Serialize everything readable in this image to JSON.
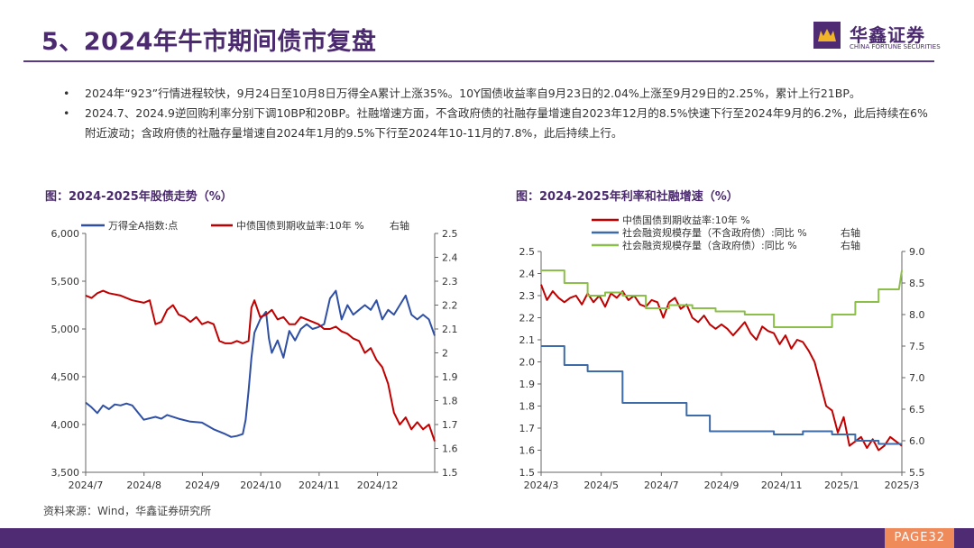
{
  "page": {
    "title": "5、2024年牛市期间债市复盘",
    "logo_cn": "华鑫证券",
    "logo_en": "CHINA FORTUNE SECURITIES",
    "bullets": [
      "2024年“923”行情进程较快，9月24日至10月8日万得全A累计上涨35%。10Y国债收益率自9月23日的2.04%上涨至9月29日的2.25%，累计上行21BP。",
      "2024.7、2024.9逆回购利率分别下调10BP和20BP。社融增速方面，不含政府债的社融存量增速自2023年12月的8.5%快速下行至2024年9月的6.2%，此后持续在6%附近波动；含政府债的社融存量增速自2024年1月的9.5%下行至2024年10-11月的7.8%，此后持续上行。"
    ],
    "chart1_title": "图：2024-2025年股债走势（%）",
    "chart2_title": "图：2024-2025年利率和社融增速（%）",
    "source": "资料来源：Wind，华鑫证券研究所",
    "page_label": "PAGE32"
  },
  "colors": {
    "brand": "#4f2b73",
    "series_blue": "#2e4fa3",
    "series_red": "#c00000",
    "series_green": "#8cbf4a",
    "series_steel": "#3d6aa8",
    "page_tag": "#ef8a5b"
  },
  "chart_data": [
    {
      "type": "line",
      "x_tick_labels": [
        "2024/7",
        "2024/8",
        "2024/9",
        "2024/10",
        "2024/11",
        "2024/12"
      ],
      "right_axis_note": "右轴",
      "y_left": {
        "lim": [
          3500,
          6000
        ],
        "ticks": [
          3500,
          4000,
          4500,
          5000,
          5500,
          6000
        ],
        "tick_labels": [
          "3,500",
          "4,000",
          "4,500",
          "5,000",
          "5,500",
          "6,000"
        ]
      },
      "y_right": {
        "lim": [
          1.5,
          2.5
        ],
        "ticks": [
          1.5,
          1.6,
          1.7,
          1.8,
          1.9,
          2.0,
          2.1,
          2.2,
          2.3,
          2.4,
          2.5
        ],
        "tick_labels": [
          "1.5",
          "1.6",
          "1.7",
          "1.8",
          "1.9",
          "2",
          "2.1",
          "2.2",
          "2.3",
          "2.4",
          "2.5"
        ]
      },
      "x_range": [
        0,
        6
      ],
      "series": [
        {
          "name": "万得全A指数:点",
          "axis": "left",
          "x": [
            0,
            0.1,
            0.2,
            0.3,
            0.4,
            0.5,
            0.6,
            0.7,
            0.8,
            1.0,
            1.2,
            1.3,
            1.4,
            1.6,
            1.8,
            2.0,
            2.2,
            2.4,
            2.5,
            2.6,
            2.7,
            2.75,
            2.8,
            2.85,
            2.9,
            3.0,
            3.1,
            3.15,
            3.2,
            3.3,
            3.4,
            3.5,
            3.6,
            3.7,
            3.8,
            3.9,
            4.0,
            4.1,
            4.2,
            4.3,
            4.4,
            4.5,
            4.6,
            4.7,
            4.8,
            4.9,
            5.0,
            5.1,
            5.2,
            5.3,
            5.4,
            5.5,
            5.6,
            5.7,
            5.8,
            5.9,
            6.0
          ],
          "y": [
            4230,
            4180,
            4120,
            4200,
            4160,
            4210,
            4200,
            4220,
            4200,
            4050,
            4080,
            4060,
            4100,
            4060,
            4030,
            4020,
            3950,
            3900,
            3870,
            3880,
            3900,
            4050,
            4350,
            4700,
            4960,
            5100,
            5180,
            4900,
            4750,
            4880,
            4700,
            4980,
            4880,
            5000,
            5050,
            5000,
            5020,
            5050,
            5320,
            5400,
            5100,
            5250,
            5150,
            5200,
            5250,
            5200,
            5300,
            5100,
            5200,
            5150,
            5250,
            5350,
            5150,
            5100,
            5150,
            5100,
            4930
          ]
        },
        {
          "name": "中债国债到期收益率:10年 %",
          "axis": "right",
          "x": [
            0,
            0.1,
            0.2,
            0.3,
            0.4,
            0.6,
            0.8,
            1.0,
            1.1,
            1.2,
            1.3,
            1.4,
            1.5,
            1.6,
            1.7,
            1.8,
            1.9,
            2.0,
            2.1,
            2.2,
            2.3,
            2.4,
            2.5,
            2.6,
            2.7,
            2.8,
            2.85,
            2.9,
            3.0,
            3.1,
            3.2,
            3.3,
            3.4,
            3.5,
            3.6,
            3.7,
            3.8,
            3.9,
            4.0,
            4.1,
            4.2,
            4.3,
            4.4,
            4.5,
            4.6,
            4.7,
            4.8,
            4.9,
            5.0,
            5.1,
            5.2,
            5.3,
            5.4,
            5.5,
            5.6,
            5.7,
            5.8,
            5.9,
            6.0
          ],
          "y": [
            2.24,
            2.23,
            2.25,
            2.26,
            2.25,
            2.24,
            2.22,
            2.21,
            2.22,
            2.12,
            2.13,
            2.18,
            2.2,
            2.16,
            2.15,
            2.13,
            2.15,
            2.12,
            2.13,
            2.12,
            2.05,
            2.04,
            2.04,
            2.05,
            2.04,
            2.05,
            2.19,
            2.22,
            2.15,
            2.16,
            2.18,
            2.14,
            2.15,
            2.12,
            2.12,
            2.15,
            2.14,
            2.13,
            2.12,
            2.1,
            2.1,
            2.11,
            2.09,
            2.08,
            2.06,
            2.05,
            2.0,
            2.02,
            1.97,
            1.94,
            1.87,
            1.75,
            1.7,
            1.73,
            1.68,
            1.71,
            1.68,
            1.7,
            1.63
          ]
        }
      ]
    },
    {
      "type": "line",
      "x_tick_labels": [
        "2024/3",
        "2024/5",
        "2024/7",
        "2024/9",
        "2024/11",
        "2025/1",
        "2025/3"
      ],
      "right_axis_note": "右轴",
      "y_left": {
        "lim": [
          1.5,
          2.5
        ],
        "ticks": [
          1.5,
          1.6,
          1.7,
          1.8,
          1.9,
          2.0,
          2.1,
          2.2,
          2.3,
          2.4,
          2.5
        ],
        "tick_labels": [
          "1.5",
          "1.6",
          "1.7",
          "1.8",
          "1.9",
          "2.0",
          "2.1",
          "2.2",
          "2.3",
          "2.4",
          "2.5"
        ]
      },
      "y_right": {
        "lim": [
          5.5,
          9.0
        ],
        "ticks": [
          5.5,
          6.0,
          6.5,
          7.0,
          7.5,
          8.0,
          8.5,
          9.0
        ],
        "tick_labels": [
          "5.5",
          "6.0",
          "6.5",
          "7.0",
          "7.5",
          "8.0",
          "8.5",
          "9.0"
        ]
      },
      "x_range": [
        0,
        6.2
      ],
      "series": [
        {
          "name": "中债国债到期收益率:10年 %",
          "axis": "left",
          "x": [
            0,
            0.1,
            0.2,
            0.3,
            0.4,
            0.5,
            0.6,
            0.7,
            0.8,
            0.9,
            1.0,
            1.1,
            1.2,
            1.3,
            1.4,
            1.5,
            1.6,
            1.7,
            1.8,
            1.9,
            2.0,
            2.1,
            2.2,
            2.3,
            2.4,
            2.5,
            2.6,
            2.7,
            2.8,
            2.9,
            3.0,
            3.1,
            3.2,
            3.3,
            3.4,
            3.5,
            3.6,
            3.7,
            3.8,
            3.9,
            4.0,
            4.1,
            4.2,
            4.3,
            4.4,
            4.5,
            4.6,
            4.7,
            4.8,
            4.9,
            5.0,
            5.1,
            5.2,
            5.3,
            5.4,
            5.5,
            5.6,
            5.7,
            5.8,
            5.9,
            6.0,
            6.1,
            6.2
          ],
          "y": [
            2.35,
            2.28,
            2.32,
            2.29,
            2.27,
            2.29,
            2.3,
            2.26,
            2.31,
            2.27,
            2.3,
            2.25,
            2.31,
            2.29,
            2.32,
            2.28,
            2.3,
            2.26,
            2.25,
            2.28,
            2.27,
            2.2,
            2.27,
            2.29,
            2.24,
            2.26,
            2.2,
            2.18,
            2.21,
            2.17,
            2.15,
            2.17,
            2.15,
            2.12,
            2.15,
            2.18,
            2.13,
            2.1,
            2.16,
            2.14,
            2.13,
            2.08,
            2.12,
            2.06,
            2.1,
            2.09,
            2.05,
            2.0,
            1.9,
            1.8,
            1.78,
            1.68,
            1.75,
            1.62,
            1.64,
            1.66,
            1.61,
            1.65,
            1.6,
            1.62,
            1.66,
            1.64,
            1.62
          ]
        },
        {
          "name": "社会融资规模存量（不含政府债）:同比 %",
          "axis": "right",
          "x": [
            0,
            0.4,
            0.4,
            0.8,
            0.8,
            1.4,
            1.4,
            2.0,
            2.0,
            2.5,
            2.5,
            2.9,
            2.9,
            3.5,
            3.5,
            4.0,
            4.0,
            4.5,
            4.5,
            5.0,
            5.0,
            5.4,
            5.4,
            5.8,
            5.8,
            6.2
          ],
          "y": [
            7.5,
            7.5,
            7.2,
            7.2,
            7.1,
            7.1,
            6.6,
            6.6,
            6.6,
            6.6,
            6.4,
            6.4,
            6.15,
            6.15,
            6.15,
            6.15,
            6.1,
            6.1,
            6.15,
            6.15,
            6.1,
            6.1,
            6.0,
            6.0,
            5.95,
            5.95
          ]
        },
        {
          "name": "社会融资规模存量（含政府债）:同比 %",
          "axis": "right",
          "x": [
            0,
            0.4,
            0.4,
            0.8,
            0.8,
            1.1,
            1.1,
            1.4,
            1.4,
            1.8,
            1.8,
            2.2,
            2.2,
            2.6,
            2.6,
            3.0,
            3.0,
            3.5,
            3.5,
            4.0,
            4.0,
            4.5,
            4.5,
            5.0,
            5.0,
            5.4,
            5.4,
            5.8,
            5.8,
            6.15,
            6.2
          ],
          "y": [
            8.7,
            8.7,
            8.5,
            8.5,
            8.3,
            8.3,
            8.35,
            8.35,
            8.3,
            8.3,
            8.1,
            8.1,
            8.15,
            8.15,
            8.1,
            8.1,
            8.05,
            8.05,
            8.0,
            8.0,
            7.8,
            7.8,
            7.8,
            7.8,
            8.0,
            8.0,
            8.2,
            8.2,
            8.4,
            8.4,
            8.7
          ]
        }
      ]
    }
  ]
}
